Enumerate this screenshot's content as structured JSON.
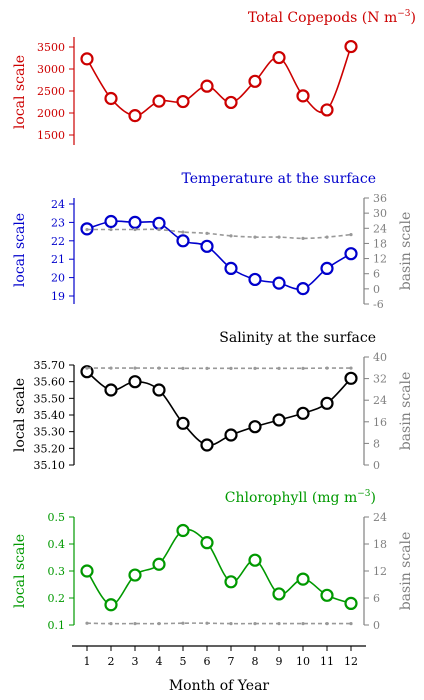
{
  "chart_data": [
    {
      "type": "line",
      "title": "Total Copepods (N m",
      "title_sup": "−3",
      "title_close": ")",
      "color": "#cc0000",
      "ylabel_left": "local scale",
      "ylim_left": [
        1300,
        3800
      ],
      "yticks_left": [
        1500,
        2000,
        2500,
        3000,
        3500
      ],
      "x": [
        1,
        2,
        3,
        4,
        5,
        6,
        7,
        8,
        9,
        10,
        11,
        12
      ],
      "series": [
        {
          "values": [
            3230,
            2330,
            1940,
            2270,
            2260,
            2610,
            2240,
            2720,
            3260,
            2390,
            2070,
            3510
          ]
        }
      ]
    },
    {
      "type": "line",
      "title": "Temperature at the surface",
      "color": "#0000cc",
      "ylabel_left": "local scale",
      "ylabel_right": "basin scale",
      "ylim_left": [
        18.5,
        24.5
      ],
      "ylim_right": [
        -6,
        36
      ],
      "yticks_left": [
        19,
        20,
        21,
        22,
        23,
        24
      ],
      "yticks_right": [
        -6,
        0,
        6,
        12,
        18,
        24,
        30,
        36
      ],
      "x": [
        1,
        2,
        3,
        4,
        5,
        6,
        7,
        8,
        9,
        10,
        11,
        12
      ],
      "series": [
        {
          "axis": "left",
          "values": [
            22.65,
            23.05,
            23.0,
            22.95,
            22.0,
            21.7,
            20.5,
            19.9,
            19.7,
            19.4,
            20.5,
            21.3
          ]
        },
        {
          "axis": "right",
          "style": "dashed",
          "values": [
            23.5,
            23.5,
            23.5,
            23.5,
            22.5,
            22.0,
            21.0,
            20.5,
            20.5,
            20.0,
            20.5,
            21.5
          ]
        }
      ]
    },
    {
      "type": "line",
      "title": "Salinity at the surface",
      "color": "#000000",
      "ylabel_left": "local scale",
      "ylabel_right": "basin scale",
      "ylim_left": [
        35.1,
        35.72
      ],
      "ylim_right": [
        0,
        40
      ],
      "yticks_left": [
        "35.10",
        "35.20",
        "35.30",
        "35.40",
        "35.50",
        "35.60",
        "35.70"
      ],
      "yticks_right": [
        0,
        8,
        16,
        24,
        32,
        40
      ],
      "x": [
        1,
        2,
        3,
        4,
        5,
        6,
        7,
        8,
        9,
        10,
        11,
        12
      ],
      "series": [
        {
          "axis": "left",
          "values": [
            35.66,
            35.55,
            35.6,
            35.55,
            35.35,
            35.22,
            35.28,
            35.33,
            35.37,
            35.41,
            35.47,
            35.62
          ]
        },
        {
          "axis": "right",
          "style": "dashed",
          "values": [
            35.9,
            35.9,
            35.9,
            35.9,
            35.8,
            35.8,
            35.8,
            35.8,
            35.8,
            35.8,
            35.9,
            35.9
          ]
        }
      ]
    },
    {
      "type": "line",
      "title": "Chlorophyll (mg m",
      "title_sup": "−3",
      "title_close": ")",
      "color": "#009900",
      "ylabel_left": "local scale",
      "ylabel_right": "basin scale",
      "xlabel": "Month of Year",
      "ylim_left": [
        0.1,
        0.5
      ],
      "ylim_right": [
        0,
        24
      ],
      "yticks_left": [
        0.1,
        0.2,
        0.3,
        0.4,
        0.5
      ],
      "yticks_right": [
        0,
        6,
        12,
        18,
        24
      ],
      "x": [
        1,
        2,
        3,
        4,
        5,
        6,
        7,
        8,
        9,
        10,
        11,
        12
      ],
      "series": [
        {
          "axis": "left",
          "values": [
            0.3,
            0.175,
            0.285,
            0.325,
            0.45,
            0.405,
            0.26,
            0.34,
            0.215,
            0.27,
            0.21,
            0.18
          ]
        },
        {
          "axis": "right",
          "style": "dashed",
          "values": [
            0.4,
            0.3,
            0.3,
            0.3,
            0.4,
            0.4,
            0.3,
            0.3,
            0.3,
            0.3,
            0.3,
            0.3
          ]
        }
      ]
    }
  ]
}
